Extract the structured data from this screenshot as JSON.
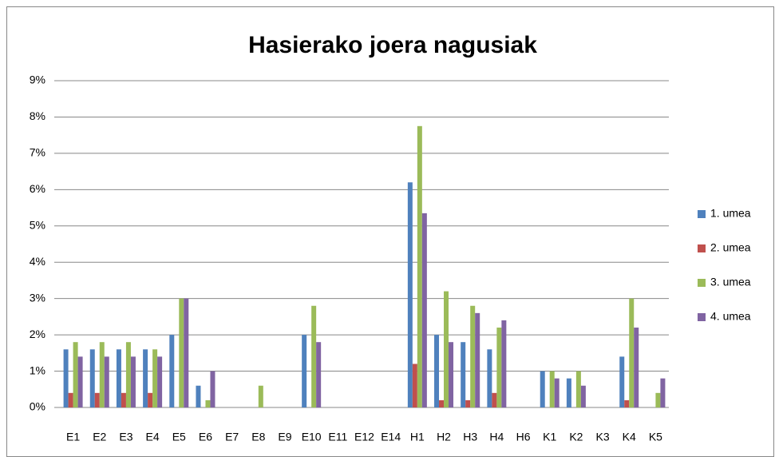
{
  "chart_data": {
    "type": "bar",
    "title": "Hasierako joera nagusiak",
    "categories": [
      "E1",
      "E2",
      "E3",
      "E4",
      "E5",
      "E6",
      "E7",
      "E8",
      "E9",
      "E10",
      "E11",
      "E12",
      "E14",
      "H1",
      "H2",
      "H3",
      "H4",
      "H6",
      "K1",
      "K2",
      "K3",
      "K4",
      "K5"
    ],
    "series": [
      {
        "name": "1. umea",
        "color": "#4f81bd",
        "values": [
          1.6,
          1.6,
          1.6,
          1.6,
          2.0,
          0.6,
          0,
          0,
          0,
          2.0,
          0,
          0,
          0,
          6.2,
          2.0,
          1.8,
          1.6,
          0,
          1.0,
          0.8,
          0,
          1.4,
          0
        ]
      },
      {
        "name": "2. umea",
        "color": "#c0504d",
        "values": [
          0.4,
          0.4,
          0.4,
          0.4,
          0,
          0,
          0,
          0,
          0,
          0,
          0,
          0,
          0,
          1.2,
          0.2,
          0.2,
          0.4,
          0,
          0,
          0,
          0,
          0.2,
          0
        ]
      },
      {
        "name": "3. umea",
        "color": "#9bbb59",
        "values": [
          1.8,
          1.8,
          1.8,
          1.6,
          3.0,
          0.2,
          0,
          0.6,
          0,
          2.8,
          0,
          0,
          0,
          7.75,
          3.2,
          2.8,
          2.2,
          0,
          1.0,
          1.0,
          0,
          3.0,
          0.4
        ]
      },
      {
        "name": "4. umea",
        "color": "#8064a2",
        "values": [
          1.4,
          1.4,
          1.4,
          1.4,
          3.0,
          1.0,
          0,
          0,
          0,
          1.8,
          0,
          0,
          0,
          5.35,
          1.8,
          2.6,
          2.4,
          0,
          0.8,
          0.6,
          0,
          2.2,
          0.8
        ]
      }
    ],
    "ylim": [
      0,
      9
    ],
    "yticks": [
      {
        "value": 0,
        "label": "0%"
      },
      {
        "value": 1,
        "label": "1%"
      },
      {
        "value": 2,
        "label": "2%"
      },
      {
        "value": 3,
        "label": "3%"
      },
      {
        "value": 4,
        "label": "4%"
      },
      {
        "value": 5,
        "label": "5%"
      },
      {
        "value": 6,
        "label": "6%"
      },
      {
        "value": 7,
        "label": "7%"
      },
      {
        "value": 8,
        "label": "8%"
      },
      {
        "value": 9,
        "label": "9%"
      }
    ],
    "grid": true,
    "legend": "right"
  }
}
